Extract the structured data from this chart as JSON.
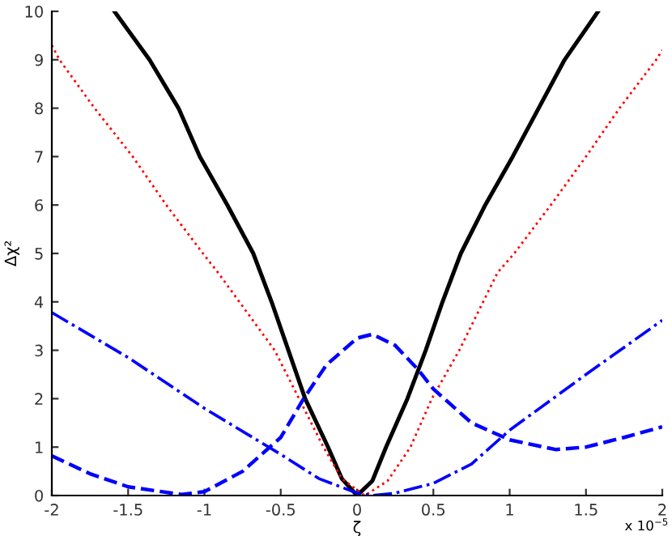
{
  "chart_data": {
    "type": "line",
    "xlabel": "ζ",
    "ylabel": "Δχ²",
    "annotations": [
      "x 10$^{−5}$"
    ],
    "xlim": [
      -2,
      2
    ],
    "ylim": [
      0,
      10
    ],
    "xticks": [
      -2,
      -1.5,
      -1,
      -0.5,
      0,
      0.5,
      1,
      1.5,
      2
    ],
    "yticks": [
      0,
      1,
      2,
      3,
      4,
      5,
      6,
      7,
      8,
      9,
      10
    ],
    "grid": false,
    "legend": false,
    "marker": "none",
    "series": [
      {
        "color": "#000000",
        "line_style": "solid",
        "x": [
          -1.59,
          -1.36,
          -1.17,
          -1.03,
          -0.85,
          -0.68,
          -0.56,
          -0.45,
          -0.34,
          -0.19,
          -0.1,
          0,
          0.1,
          0.19,
          0.33,
          0.45,
          0.56,
          0.68,
          0.84,
          1.02,
          1.19,
          1.36,
          1.58
        ],
        "values": [
          10,
          9,
          8,
          7,
          6,
          5,
          4,
          3,
          2,
          1,
          0.35,
          0,
          0.3,
          1,
          2,
          3,
          4,
          5,
          6,
          7,
          8,
          9,
          10
        ]
      },
      {
        "color": "#ff0000",
        "line_style": "dotted",
        "x": [
          -2,
          -1.95,
          -1.72,
          -1.47,
          -1.25,
          -1.01,
          -0.91,
          -0.54,
          -0.38,
          -0.22,
          -0.1,
          0.05,
          0.2,
          0.35,
          0.49,
          0.67,
          0.92,
          1.03,
          1.27,
          1.5,
          1.72,
          1.96,
          2
        ],
        "values": [
          9.3,
          9,
          8,
          7,
          6,
          5,
          4.6,
          3,
          2,
          1,
          0.35,
          0,
          0.3,
          1,
          2,
          3,
          4.6,
          5,
          6,
          7,
          8,
          9,
          9.2
        ]
      },
      {
        "color": "#0000ff",
        "line_style": "dashed",
        "x": [
          -2,
          -1.75,
          -1.5,
          -1.15,
          -1,
          -0.75,
          -0.5,
          -0.35,
          -0.2,
          0,
          0.1,
          0.25,
          0.4,
          0.5,
          0.75,
          1,
          1.3,
          1.5,
          1.75,
          2
        ],
        "values": [
          0.82,
          0.45,
          0.18,
          0.02,
          0.08,
          0.5,
          1.2,
          2,
          2.7,
          3.25,
          3.33,
          3.1,
          2.6,
          2.2,
          1.5,
          1.15,
          0.95,
          1,
          1.2,
          1.42
        ]
      },
      {
        "color": "#0000ff",
        "line_style": "dashdot",
        "x": [
          -2,
          -1.5,
          -1,
          -0.5,
          -0.25,
          0,
          0.1,
          0.25,
          0.5,
          0.75,
          1,
          1.5,
          2
        ],
        "values": [
          3.78,
          2.85,
          1.8,
          0.85,
          0.35,
          0.05,
          0,
          0.05,
          0.25,
          0.65,
          1.35,
          2.5,
          3.62
        ]
      }
    ]
  }
}
